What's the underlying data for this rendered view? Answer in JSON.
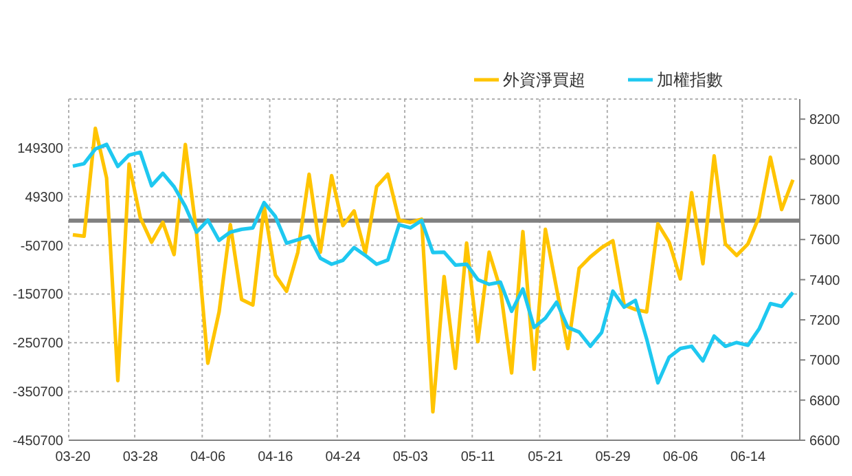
{
  "chart_data": {
    "type": "line",
    "categories": [
      "03-20",
      null,
      null,
      null,
      null,
      null,
      "03-28",
      null,
      null,
      null,
      null,
      null,
      "04-06",
      null,
      null,
      null,
      null,
      null,
      "04-16",
      null,
      null,
      null,
      null,
      null,
      "04-24",
      null,
      null,
      null,
      null,
      null,
      "05-03",
      null,
      null,
      null,
      null,
      null,
      "05-11",
      null,
      null,
      null,
      null,
      null,
      "05-21",
      null,
      null,
      null,
      null,
      null,
      "05-29",
      null,
      null,
      null,
      null,
      null,
      "06-06",
      null,
      null,
      null,
      null,
      null,
      "06-14",
      null,
      null,
      null,
      null
    ],
    "series": [
      {
        "name": "外資淨買超",
        "color": "#ffc400",
        "values": [
          -29300,
          -32100,
          189100,
          87400,
          -328400,
          115700,
          5600,
          -44300,
          -3800,
          -69700,
          156100,
          -27400,
          -292700,
          -187300,
          -8500,
          -161900,
          -173200,
          29100,
          -112000,
          -145000,
          -65000,
          95000,
          -65000,
          92100,
          -10400,
          19700,
          -66900,
          69600,
          95000,
          900,
          -3800,
          2800,
          -392500,
          -114900,
          -303100,
          -46200,
          -248500,
          -65000,
          -140300,
          -312500,
          -22700,
          -305000,
          -18000,
          -140300,
          -262600,
          -97900,
          -74400,
          -55600,
          -41500,
          -173200,
          -182600,
          -187300,
          -6700,
          -44300,
          -119600,
          57300,
          -88500,
          132600,
          -48100,
          -71600,
          -48100,
          8400,
          129800,
          22500,
          83700
        ]
      },
      {
        "name": "加權指數",
        "color": "#1ec8f0",
        "axis": "y2",
        "values": [
          7966,
          7978,
          8051,
          8074,
          7964,
          8021,
          8035,
          7868,
          7930,
          7863,
          7765,
          7637,
          7697,
          7596,
          7637,
          7651,
          7658,
          7784,
          7715,
          7582,
          7599,
          7617,
          7507,
          7477,
          7496,
          7560,
          7521,
          7477,
          7498,
          7674,
          7658,
          7695,
          7535,
          7537,
          7473,
          7477,
          7400,
          7377,
          7388,
          7242,
          7354,
          7162,
          7208,
          7288,
          7162,
          7139,
          7068,
          7137,
          7343,
          7263,
          7297,
          7105,
          6886,
          7014,
          7057,
          7068,
          6995,
          7119,
          7068,
          7087,
          7073,
          7155,
          7281,
          7267,
          7336
        ]
      }
    ],
    "ylim": [
      -450700,
      249300
    ],
    "yticks": [
      -450700,
      -350700,
      -250700,
      -150700,
      -50700,
      49300,
      149300
    ],
    "y2lim": [
      6600,
      8300
    ],
    "y2ticks": [
      6600,
      6800,
      7000,
      7200,
      7400,
      7600,
      7800,
      8000,
      8200
    ],
    "ref_lines": [
      {
        "axis": "y",
        "value": 0,
        "color": "#808080"
      }
    ],
    "grid": true,
    "legend": "top right",
    "marker": "none",
    "line_style": "solid"
  }
}
